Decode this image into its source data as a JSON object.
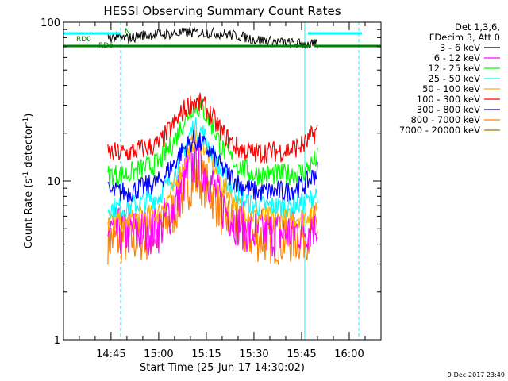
{
  "chart_data": {
    "type": "line",
    "title": "HESSI Observing Summary Count Rates",
    "xlabel": "Start Time (25-Jun-17 14:30:02)",
    "ylabel": "Count Rate (s",
    "ylabel_sup": "-1",
    "ylabel_mid": " detector",
    "ylabel_sup2": "-1",
    "ylabel_end": ")",
    "y_scale": "log",
    "ylim": [
      1,
      100
    ],
    "xlim": [
      "14:30:02",
      "16:10:00"
    ],
    "x_ticks": [
      "14:45",
      "15:00",
      "15:15",
      "15:30",
      "15:45",
      "16:00"
    ],
    "y_ticks": [
      "1",
      "10",
      "100"
    ],
    "legend_header": [
      "Det 1,3,6,",
      "FDecim 3, Att 0"
    ],
    "legend_placement": "right",
    "series": [
      {
        "name": "3 - 6 keV",
        "color": "#000000",
        "x": [
          "14:44",
          "14:47",
          "14:50",
          "14:55",
          "15:00",
          "15:05",
          "15:10",
          "15:15",
          "15:20",
          "15:25",
          "15:30",
          "15:35",
          "15:40",
          "15:45",
          "15:50"
        ],
        "values": [
          81,
          80,
          79,
          83,
          84,
          85,
          86,
          86,
          85,
          82,
          78,
          76,
          74,
          73,
          72
        ]
      },
      {
        "name": "6 - 12 keV",
        "color": "#ff00ff",
        "x": [
          "14:44",
          "14:50",
          "15:00",
          "15:05",
          "15:08",
          "15:11",
          "15:14",
          "15:17",
          "15:20",
          "15:25",
          "15:30",
          "15:40",
          "15:46",
          "15:50"
        ],
        "values": [
          4.8,
          4.7,
          5,
          7,
          10,
          13,
          12,
          9.5,
          7,
          5.5,
          4.7,
          4.7,
          5,
          5.5
        ]
      },
      {
        "name": "12 - 25 keV",
        "color": "#00ff00",
        "x": [
          "14:44",
          "14:50",
          "15:00",
          "15:05",
          "15:08",
          "15:11",
          "15:14",
          "15:17",
          "15:20",
          "15:25",
          "15:30",
          "15:40",
          "15:46",
          "15:50"
        ],
        "values": [
          11,
          11,
          13,
          18,
          24,
          30,
          28,
          22,
          16,
          12.5,
          11,
          11,
          11.5,
          14
        ]
      },
      {
        "name": "25 - 50 keV",
        "color": "#00ffff",
        "x": [
          "14:44",
          "14:50",
          "15:00",
          "15:05",
          "15:08",
          "15:11",
          "15:14",
          "15:17",
          "15:20",
          "15:25",
          "15:30",
          "15:40",
          "15:46",
          "15:50"
        ],
        "values": [
          6.8,
          6.8,
          8,
          11,
          16,
          22,
          20,
          15,
          11,
          8.2,
          7,
          6.9,
          7.2,
          8.5
        ]
      },
      {
        "name": "50 - 100 keV",
        "color": "#ffb000",
        "x": [
          "14:44",
          "14:50",
          "15:00",
          "15:05",
          "15:08",
          "15:11",
          "15:14",
          "15:17",
          "15:20",
          "15:25",
          "15:30",
          "15:40",
          "15:46",
          "15:50"
        ],
        "values": [
          5.6,
          5.6,
          6.3,
          9,
          13,
          18,
          17,
          13,
          9.5,
          7,
          6,
          5.8,
          6,
          7
        ]
      },
      {
        "name": "100 - 300 keV",
        "color": "#ff0000",
        "x": [
          "14:44",
          "14:50",
          "15:00",
          "15:05",
          "15:08",
          "15:11",
          "15:14",
          "15:17",
          "15:20",
          "15:25",
          "15:30",
          "15:40",
          "15:46",
          "15:50"
        ],
        "values": [
          15,
          15,
          17,
          23,
          28,
          32,
          30,
          25,
          20,
          16,
          15,
          15.5,
          17,
          21
        ]
      },
      {
        "name": "300 - 800 keV",
        "color": "#0000ff",
        "x": [
          "14:44",
          "14:50",
          "15:00",
          "15:05",
          "15:08",
          "15:11",
          "15:14",
          "15:17",
          "15:20",
          "15:25",
          "15:30",
          "15:40",
          "15:46",
          "15:50"
        ],
        "values": [
          8.5,
          8.5,
          9.8,
          13,
          16,
          18,
          17,
          14.5,
          12,
          9.7,
          8.6,
          8.6,
          9.5,
          11.5
        ]
      },
      {
        "name": "800 - 7000 keV",
        "color": "#ff8000",
        "x": [
          "14:44",
          "14:50",
          "15:00",
          "15:05",
          "15:08",
          "15:11",
          "15:14",
          "15:17",
          "15:20",
          "15:25",
          "15:30",
          "15:40",
          "15:46",
          "15:50"
        ],
        "values": [
          4.3,
          4.2,
          4.6,
          6.5,
          8.5,
          10.5,
          10,
          8,
          6.3,
          4.9,
          4.4,
          4.2,
          4.5,
          5.2
        ]
      },
      {
        "name": "7000 - 20000 keV",
        "color": "#9a7a00",
        "x": [],
        "values": []
      }
    ],
    "annotations": {
      "rd0_label": "RD0",
      "rd6_label": "RD6",
      "n_label": "N",
      "rd0_spans": [
        [
          "14:30",
          "14:48"
        ],
        [
          "15:47",
          "16:04"
        ]
      ],
      "rd6_spans": [
        [
          "14:30",
          "15:01"
        ],
        [
          "15:01",
          "15:48"
        ],
        [
          "15:49",
          "16:10"
        ]
      ],
      "rd0_color": "#00ffff",
      "rd6_color": "#008000",
      "marker_solid": [
        "14:30",
        "15:46"
      ],
      "marker_dashed": [
        "14:48",
        "16:03"
      ],
      "marker_color": "#00ffff"
    }
  },
  "footer_stamp": "9-Dec-2017 23:49"
}
